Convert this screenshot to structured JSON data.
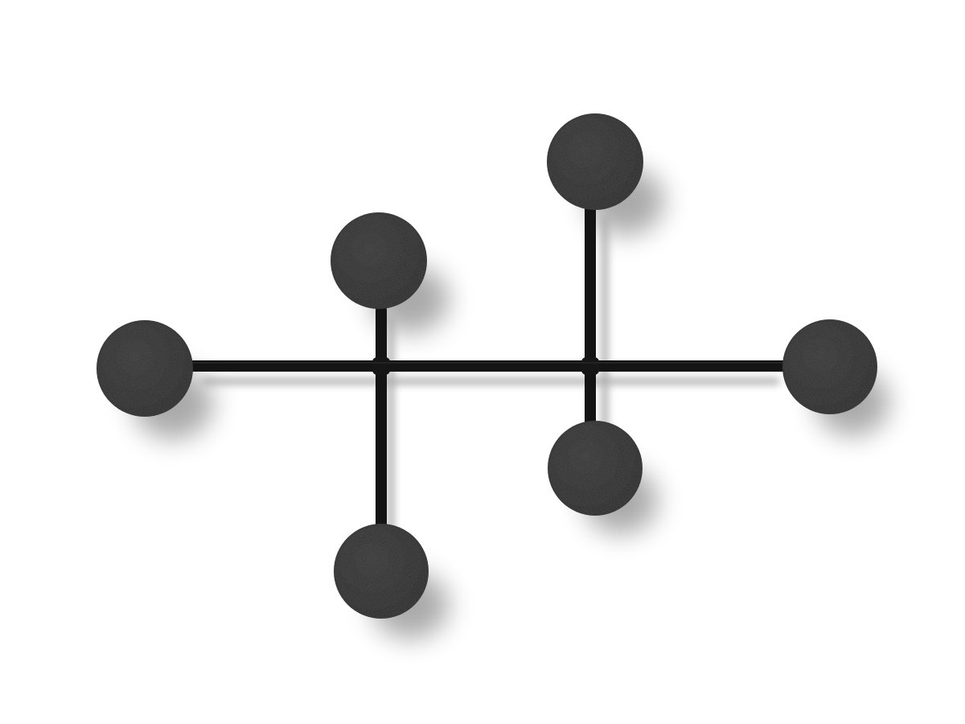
{
  "image": {
    "subject": "wall-coat-hook-rack",
    "background_color": "#ffffff",
    "metal_color": "#141414",
    "knob_color": "#1c1c1c",
    "shadow_color": "#000000",
    "knob_count": 6
  }
}
